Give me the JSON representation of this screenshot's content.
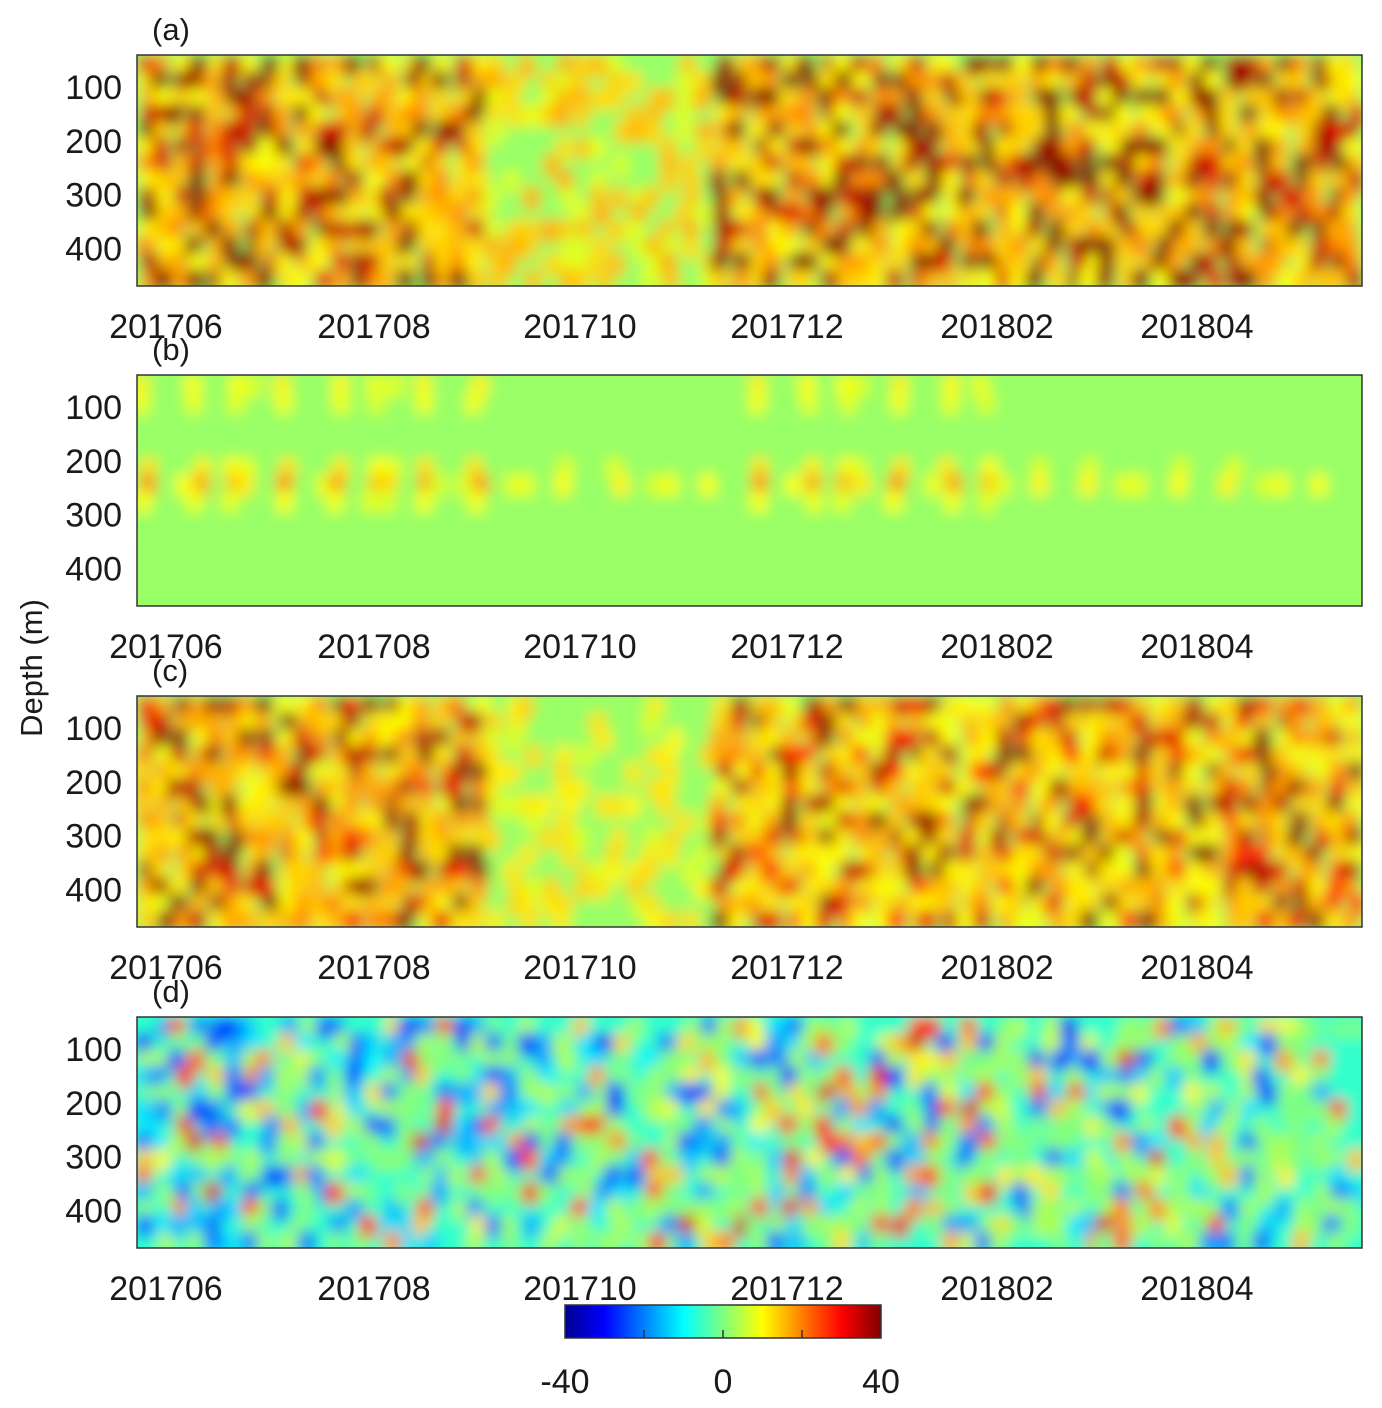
{
  "figure": {
    "ylabel": "Depth (m)"
  },
  "chart_data": [
    {
      "type": "heatmap",
      "panel_label": "(a)",
      "xticks": [
        "201706",
        "201708",
        "201710",
        "201712",
        "201802",
        "201804"
      ],
      "yticks": [
        100,
        200,
        300,
        400
      ],
      "ylim": [
        40,
        470
      ],
      "y_reversed": true,
      "clim": [
        -40,
        40
      ],
      "colormap": "jet",
      "pattern": "strong positive anomalies (up to and above 40) concentrated in mid-2017 to Aug 2017 and Dec 2017 to Apr 2018, spanning full depth"
    },
    {
      "type": "heatmap",
      "panel_label": "(b)",
      "xticks": [
        "201706",
        "201708",
        "201710",
        "201712",
        "201802",
        "201804"
      ],
      "yticks": [
        100,
        200,
        300,
        400
      ],
      "ylim": [
        40,
        470
      ],
      "y_reversed": true,
      "clim": [
        -40,
        40
      ],
      "colormap": "jet",
      "pattern": "weak periodic positive anomalies (about 10 to 20) near 50 m and 220 m, otherwise near 0"
    },
    {
      "type": "heatmap",
      "panel_label": "(c)",
      "xticks": [
        "201706",
        "201708",
        "201710",
        "201712",
        "201802",
        "201804"
      ],
      "yticks": [
        100,
        200,
        300,
        400
      ],
      "ylim": [
        40,
        470
      ],
      "y_reversed": true,
      "clim": [
        -40,
        40
      ],
      "colormap": "jet",
      "pattern": "similar to (a): strong positive anomalies in Jun to Sep 2017 and Dec 2017 to Apr 2018"
    },
    {
      "type": "heatmap",
      "panel_label": "(d)",
      "xticks": [
        "201706",
        "201708",
        "201710",
        "201712",
        "201802",
        "201804"
      ],
      "yticks": [
        100,
        200,
        300,
        400
      ],
      "ylim": [
        40,
        470
      ],
      "y_reversed": true,
      "clim": [
        -40,
        40
      ],
      "colormap": "jet",
      "pattern": "mixed anomalies between about -30 and 40; negative (blue) patches in Jun to Aug 2017, positive streaks Nov 2017 to Feb 2018"
    }
  ],
  "colorbar": {
    "ticks": [
      "-40",
      "0",
      "40"
    ],
    "range": [
      -40,
      40
    ],
    "colormap": "jet"
  }
}
